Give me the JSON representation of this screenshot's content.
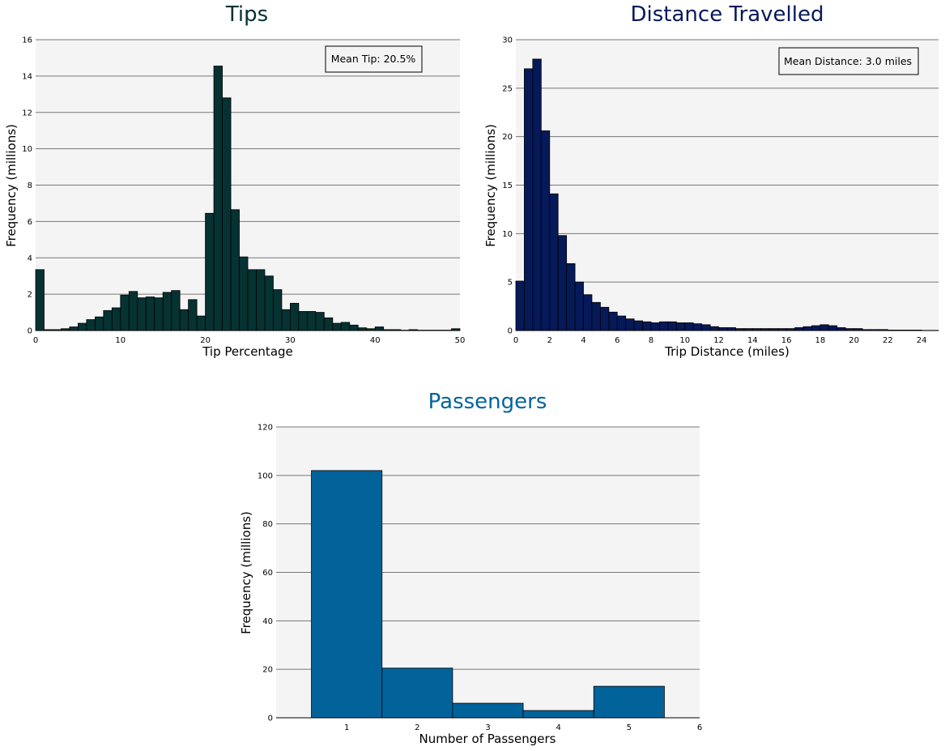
{
  "chart_data": [
    {
      "type": "bar",
      "title": "Tips",
      "xlabel": "Tip Percentage",
      "ylabel": "Frequency (millions)",
      "color": "#063232",
      "xlim": [
        0,
        50
      ],
      "ylim": [
        0,
        16
      ],
      "xticks": [
        0,
        10,
        20,
        30,
        40,
        50
      ],
      "yticks": [
        0,
        2,
        4,
        6,
        8,
        10,
        12,
        14,
        16
      ],
      "bin_edges_start": 0,
      "bin_width": 1,
      "values": [
        3.35,
        0.05,
        0.05,
        0.1,
        0.2,
        0.4,
        0.6,
        0.75,
        1.1,
        1.25,
        1.95,
        2.15,
        1.8,
        1.85,
        1.8,
        2.1,
        2.2,
        1.15,
        1.7,
        0.8,
        6.45,
        14.55,
        12.8,
        6.65,
        4.05,
        3.35,
        3.35,
        3.0,
        2.25,
        1.15,
        1.5,
        1.05,
        1.05,
        1.0,
        0.7,
        0.4,
        0.45,
        0.3,
        0.15,
        0.1,
        0.2,
        0.05,
        0.05,
        0.02,
        0.05,
        0.02,
        0.02,
        0.02,
        0.02,
        0.1
      ],
      "annotation": "Mean Tip: 20.5%"
    },
    {
      "type": "bar",
      "title": "Distance Travelled",
      "xlabel": "Trip Distance (miles)",
      "ylabel": "Frequency (millions)",
      "color": "#061959",
      "xlim": [
        0,
        25
      ],
      "ylim": [
        0,
        30
      ],
      "xticks": [
        0,
        2,
        4,
        6,
        8,
        10,
        12,
        14,
        16,
        18,
        20,
        22,
        24
      ],
      "yticks": [
        0,
        5,
        10,
        15,
        20,
        25,
        30
      ],
      "bin_edges_start": 0,
      "bin_width": 0.5,
      "values": [
        5.1,
        27.0,
        28.0,
        20.6,
        14.1,
        9.8,
        6.9,
        5.0,
        3.7,
        2.9,
        2.4,
        1.9,
        1.5,
        1.2,
        1.0,
        0.9,
        0.8,
        0.9,
        0.9,
        0.8,
        0.8,
        0.7,
        0.6,
        0.4,
        0.3,
        0.3,
        0.2,
        0.2,
        0.2,
        0.2,
        0.2,
        0.2,
        0.2,
        0.3,
        0.4,
        0.5,
        0.6,
        0.5,
        0.3,
        0.2,
        0.2,
        0.1,
        0.1,
        0.1,
        0.05,
        0.05,
        0.05,
        0.05,
        0.02,
        0.02
      ],
      "annotation": "Mean Distance: 3.0 miles"
    },
    {
      "type": "bar",
      "title": "Passengers",
      "xlabel": "Number of Passengers",
      "ylabel": "Frequency (millions)",
      "color": "#02639b",
      "xlim": [
        0,
        6
      ],
      "ylim": [
        0,
        120
      ],
      "xticks": [
        1,
        2,
        3,
        4,
        5,
        6
      ],
      "yticks": [
        0,
        20,
        40,
        60,
        80,
        100,
        120
      ],
      "categories": [
        1,
        2,
        3,
        4,
        5
      ],
      "bar_width": 1,
      "values": [
        102,
        20.5,
        6,
        3,
        13
      ]
    }
  ]
}
